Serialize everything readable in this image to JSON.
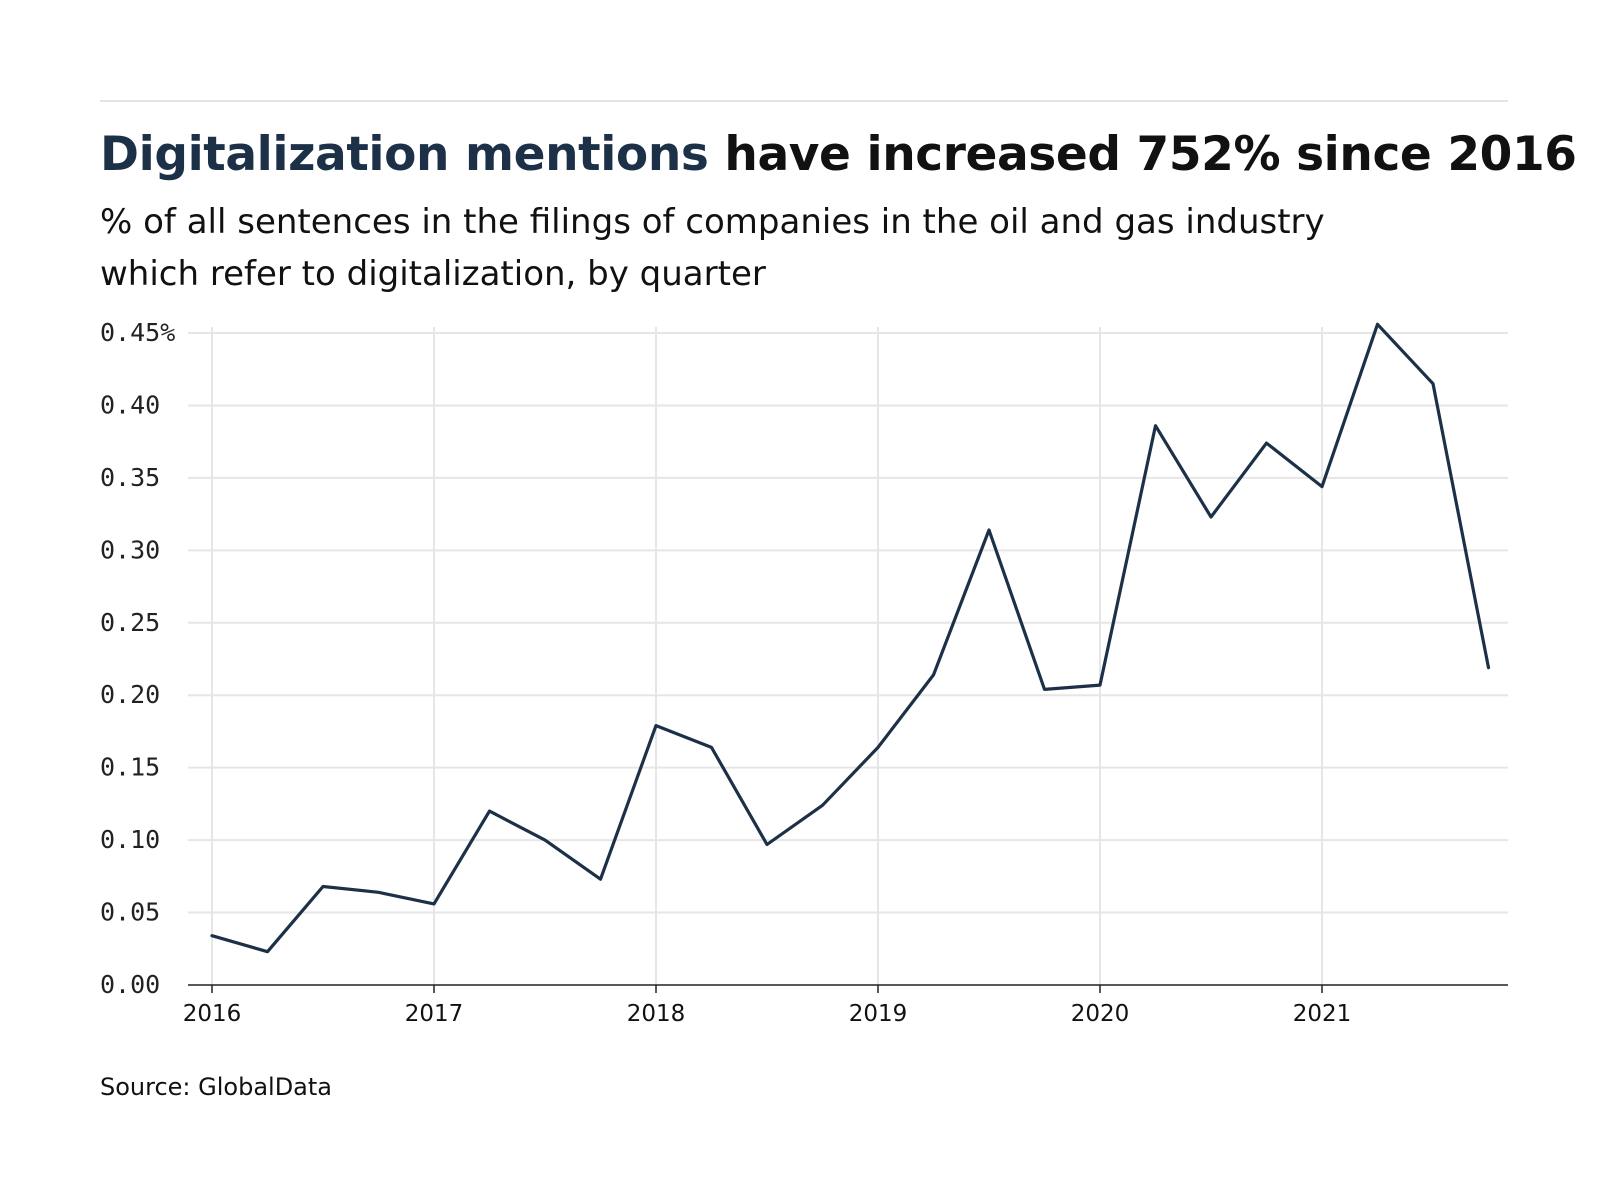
{
  "title": {
    "highlight": "Digitalization mentions",
    "rest": " have increased 752% since 2016"
  },
  "subtitle": {
    "line1": "% of all sentences in the filings of companies in the oil and gas industry",
    "line2": "which refer to digitalization, by quarter"
  },
  "source": "Source: GlobalData",
  "colors": {
    "line": "#1c3148",
    "grid": "#e6e6e6",
    "axis": "#222222"
  },
  "chart_data": {
    "type": "line",
    "title": "Digitalization mentions have increased 752% since 2016",
    "xlabel": "",
    "ylabel": "",
    "grid": true,
    "x_tick_labels": [
      "2016",
      "2017",
      "2018",
      "2019",
      "2020",
      "2021"
    ],
    "y_tick_labels": [
      "0.00",
      "0.05",
      "0.10",
      "0.15",
      "0.20",
      "0.25",
      "0.30",
      "0.35",
      "0.40",
      "0.45%"
    ],
    "y_ticks": [
      0,
      0.05,
      0.1,
      0.15,
      0.2,
      0.25,
      0.3,
      0.35,
      0.4,
      0.45
    ],
    "xlim": [
      "2016-Q1",
      "2021-Q4"
    ],
    "ylim": [
      0,
      0.45
    ],
    "x": [
      "2016-Q1",
      "2016-Q2",
      "2016-Q3",
      "2016-Q4",
      "2017-Q1",
      "2017-Q2",
      "2017-Q3",
      "2017-Q4",
      "2018-Q1",
      "2018-Q2",
      "2018-Q3",
      "2018-Q4",
      "2019-Q1",
      "2019-Q2",
      "2019-Q3",
      "2019-Q4",
      "2020-Q1",
      "2020-Q2",
      "2020-Q3",
      "2020-Q4",
      "2021-Q1",
      "2021-Q2",
      "2021-Q3",
      "2021-Q4"
    ],
    "series": [
      {
        "values": [
          0.034,
          0.023,
          0.068,
          0.064,
          0.056,
          0.12,
          0.1,
          0.073,
          0.179,
          0.164,
          0.097,
          0.124,
          0.164,
          0.214,
          0.314,
          0.204,
          0.207,
          0.386,
          0.323,
          0.374,
          0.344,
          0.456,
          0.415,
          0.219
        ]
      }
    ]
  }
}
